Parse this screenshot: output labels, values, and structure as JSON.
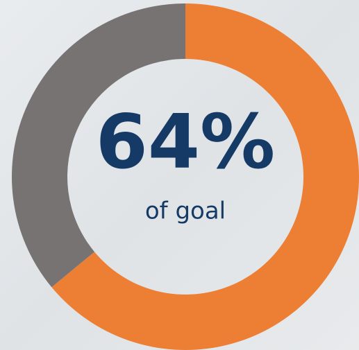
{
  "chart_data": {
    "type": "donut",
    "values": [
      64,
      36
    ],
    "value_labels": [
      "64%",
      null
    ],
    "colors": [
      "#ec7f34",
      "#767372"
    ],
    "caption": "of goal"
  }
}
